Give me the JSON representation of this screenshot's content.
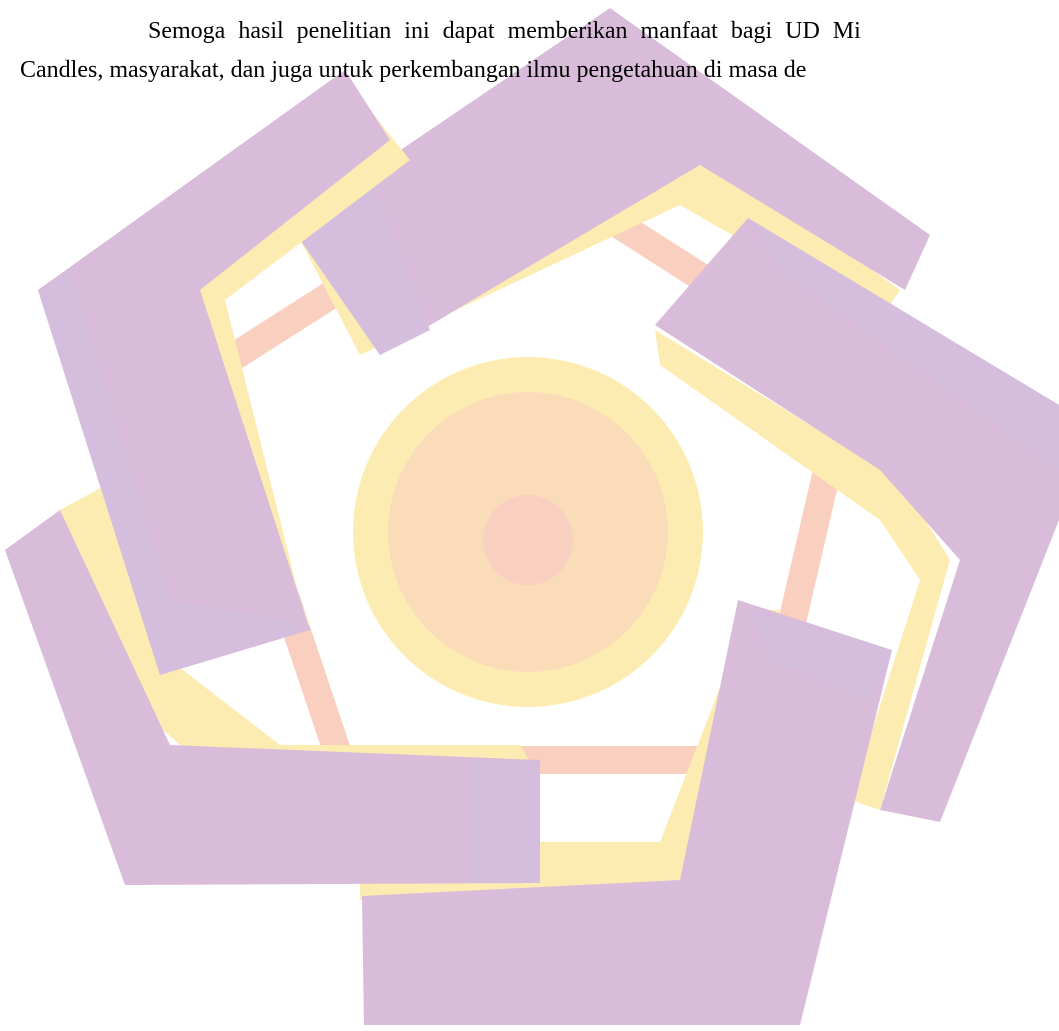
{
  "document": {
    "paragraph": {
      "line_1": "Semoga hasil penelitian ini dapat memberikan manfaat bagi UD Mi",
      "line_2": "Candles, masyarakat, dan juga untuk perkembangan ilmu pengetahuan di masa de"
    }
  },
  "watermark": {
    "icon": "pentagon-swirl-logo-watermark",
    "colors": {
      "purple": "#d9bcd9",
      "purple_shade": "#d4bddd",
      "yellow": "#fdecb2",
      "peach": "#fbdcb8",
      "salmon": "#f9cfc0"
    }
  }
}
